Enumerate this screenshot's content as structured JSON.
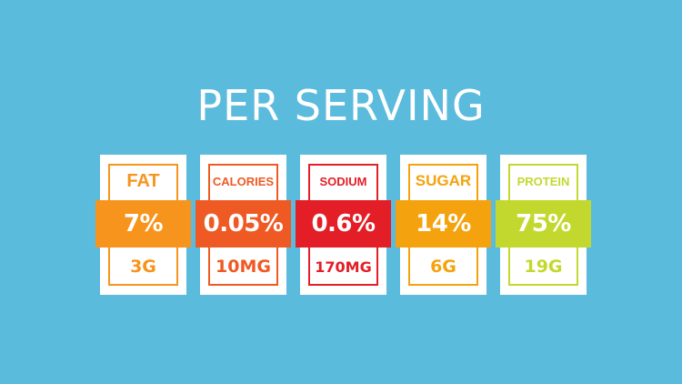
{
  "title": "PER SERVING",
  "nutrients": [
    {
      "label": "FAT",
      "percent": "7%",
      "amount": "3G",
      "color": "#f7941d"
    },
    {
      "label": "CALORIES",
      "percent": "0.05%",
      "amount": "10MG",
      "color": "#ef5a24"
    },
    {
      "label": "SODIUM",
      "percent": "0.6%",
      "amount": "170MG",
      "color": "#e31e26"
    },
    {
      "label": "SUGAR",
      "percent": "14%",
      "amount": "6G",
      "color": "#f4a30e"
    },
    {
      "label": "PROTEIN",
      "percent": "75%",
      "amount": "19G",
      "color": "#c3d82e"
    }
  ]
}
